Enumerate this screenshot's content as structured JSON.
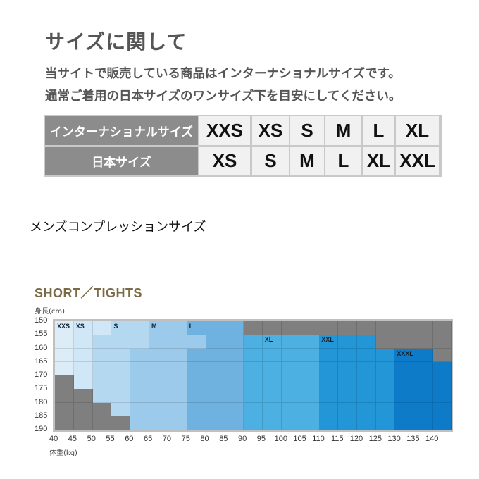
{
  "header": {
    "title": "サイズに関して",
    "line1": "当サイトで販売している商品はインターナショナルサイズです。",
    "line2": "通常ご着用の日本サイズのワンサイズ下を目安にしてください。"
  },
  "size_table": {
    "rows": [
      {
        "label": "インターナショナルサイズ",
        "values": [
          "XXS",
          "XS",
          "S",
          "M",
          "L",
          "XL"
        ]
      },
      {
        "label": "日本サイズ",
        "values": [
          "XS",
          "S",
          "M",
          "L",
          "XL",
          "XXL"
        ]
      }
    ]
  },
  "section_title": "メンズコンプレッションサイズ",
  "chart_data": {
    "type": "heatmap",
    "title": "SHORT／TIGHTS",
    "ylabel": "身長(cm)",
    "xlabel": "体重(kg)",
    "x_ticks": [
      40,
      45,
      50,
      55,
      60,
      65,
      70,
      75,
      80,
      85,
      90,
      95,
      100,
      105,
      110,
      115,
      120,
      125,
      130,
      135,
      140
    ],
    "y_ticks": [
      150,
      155,
      160,
      165,
      170,
      175,
      180,
      185,
      190
    ],
    "colors": {
      "XXS": "#dcedf8",
      "XS": "#cfe7f6",
      "S": "#b5d8f1",
      "M": "#9ccaeb",
      "L": "#6fb2df",
      "XL": "#4cb0e2",
      "XXL": "#2296d6",
      "XXXL": "#0d7bc8",
      "none": "#7f7f7f"
    },
    "cells": [
      [
        "XXS",
        "XS",
        "XS",
        "S",
        "S",
        "M",
        "M",
        "L",
        "L",
        "L",
        "none",
        "none",
        "none",
        "none",
        "none",
        "none",
        "none",
        "none",
        "none",
        "none",
        "none"
      ],
      [
        "XXS",
        "XS",
        "S",
        "S",
        "S",
        "M",
        "M",
        "M",
        "L",
        "L",
        "XL",
        "XL",
        "XL",
        "XL",
        "XXL",
        "XXL",
        "XXL",
        "none",
        "none",
        "none",
        "none"
      ],
      [
        "XXS",
        "XS",
        "S",
        "S",
        "M",
        "M",
        "M",
        "L",
        "L",
        "L",
        "XL",
        "XL",
        "XL",
        "XL",
        "XXL",
        "XXL",
        "XXL",
        "XXL",
        "XXXL",
        "XXXL",
        "none"
      ],
      [
        "XXS",
        "XS",
        "S",
        "S",
        "M",
        "M",
        "M",
        "L",
        "L",
        "L",
        "XL",
        "XL",
        "XL",
        "XL",
        "XXL",
        "XXL",
        "XXL",
        "XXL",
        "XXXL",
        "XXXL",
        "XXXL"
      ],
      [
        "none",
        "XS",
        "S",
        "S",
        "M",
        "M",
        "M",
        "L",
        "L",
        "L",
        "XL",
        "XL",
        "XL",
        "XL",
        "XXL",
        "XXL",
        "XXL",
        "XXL",
        "XXXL",
        "XXXL",
        "XXXL"
      ],
      [
        "none",
        "none",
        "S",
        "S",
        "M",
        "M",
        "M",
        "L",
        "L",
        "L",
        "XL",
        "XL",
        "XL",
        "XL",
        "XXL",
        "XXL",
        "XXL",
        "XXL",
        "XXXL",
        "XXXL",
        "XXXL"
      ],
      [
        "none",
        "none",
        "none",
        "S",
        "M",
        "M",
        "M",
        "L",
        "L",
        "L",
        "XL",
        "XL",
        "XL",
        "XL",
        "XXL",
        "XXL",
        "XXL",
        "XXL",
        "XXXL",
        "XXXL",
        "XXXL"
      ],
      [
        "none",
        "none",
        "none",
        "none",
        "M",
        "M",
        "M",
        "L",
        "L",
        "L",
        "XL",
        "XL",
        "XL",
        "XL",
        "XXL",
        "XXL",
        "XXL",
        "XXL",
        "XXXL",
        "XXXL",
        "XXXL"
      ]
    ],
    "labels": [
      {
        "text": "XXS",
        "row": 0,
        "col": 0
      },
      {
        "text": "XS",
        "row": 0,
        "col": 1
      },
      {
        "text": "S",
        "row": 0,
        "col": 3
      },
      {
        "text": "M",
        "row": 0,
        "col": 5
      },
      {
        "text": "L",
        "row": 0,
        "col": 7
      },
      {
        "text": "XL",
        "row": 1,
        "col": 11
      },
      {
        "text": "XXL",
        "row": 1,
        "col": 14
      },
      {
        "text": "XXXL",
        "row": 2,
        "col": 18
      }
    ]
  }
}
